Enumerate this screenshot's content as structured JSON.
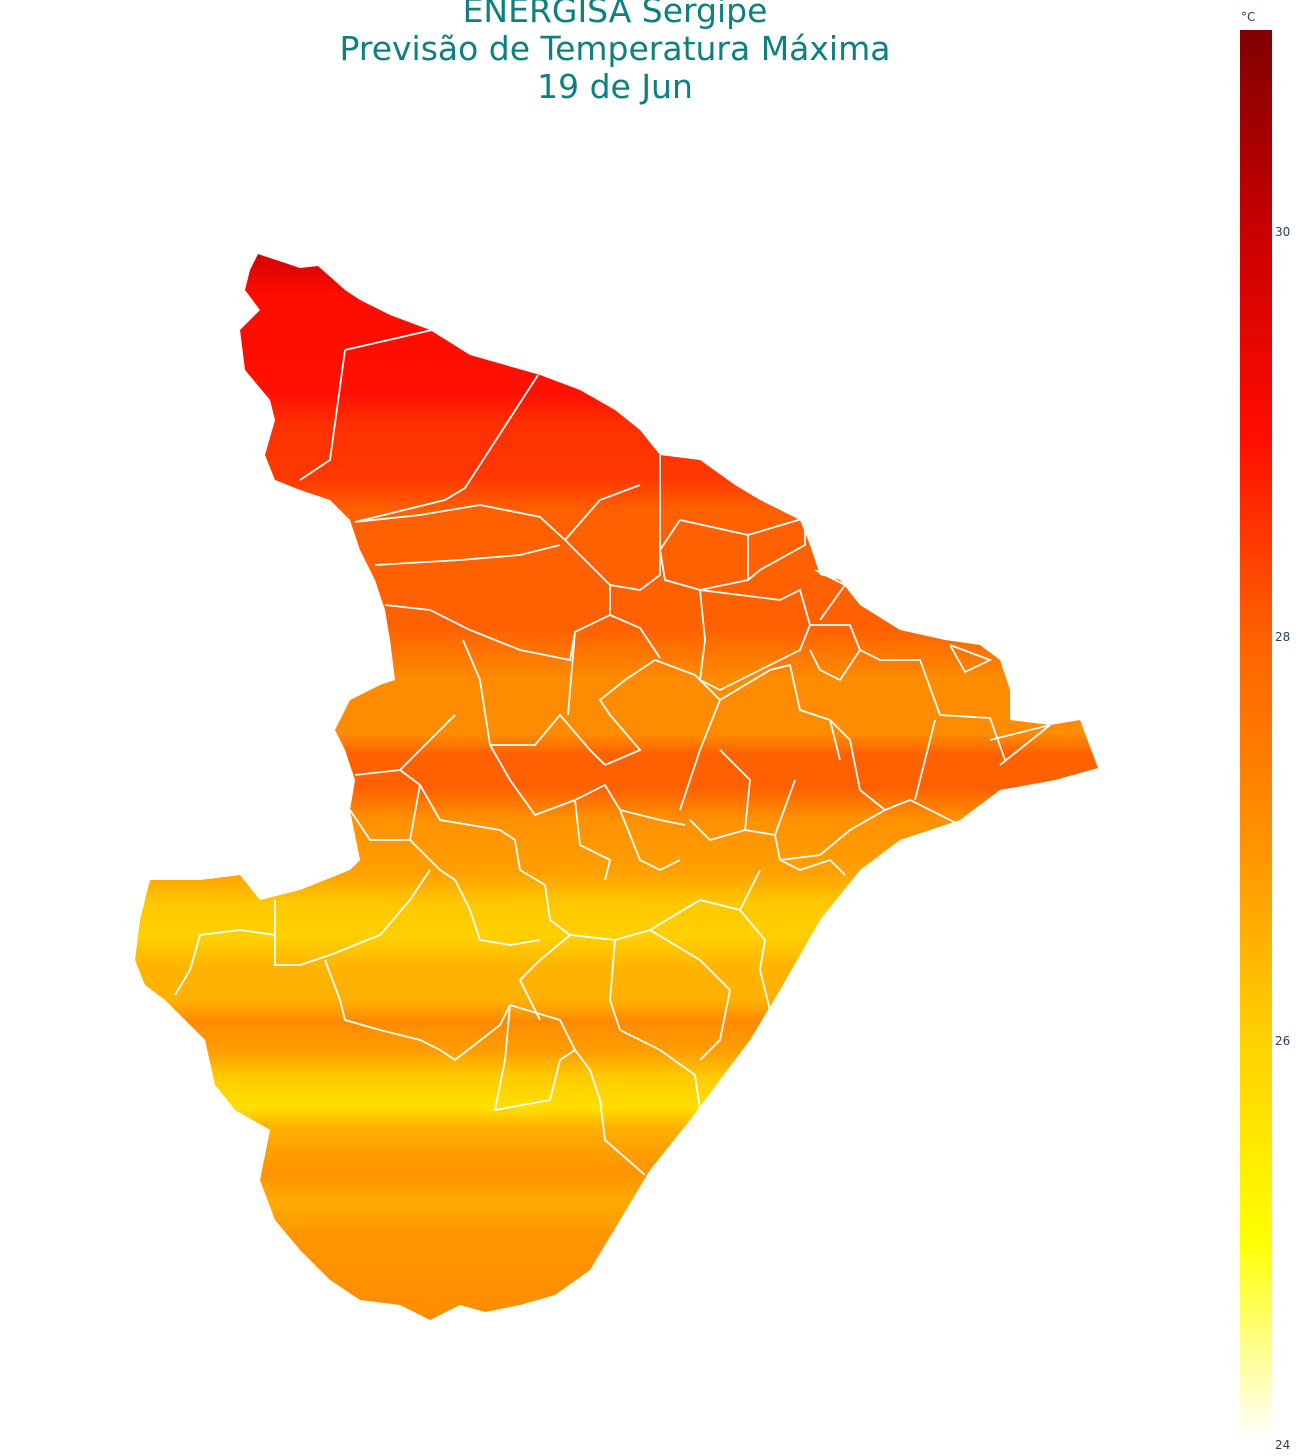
{
  "title": {
    "line1": "ENERGISA Sergipe",
    "line2": "Previsão de Temperatura Máxima",
    "line3": "19 de Jun"
  },
  "colorbar": {
    "unit": "°C",
    "ticks": [
      "30",
      "28",
      "26",
      "24"
    ],
    "range": [
      24,
      31
    ],
    "colors": [
      "#ffffff",
      "#ffff00",
      "#ffd000",
      "#ff9000",
      "#ff6000",
      "#ff0c00",
      "#c80000",
      "#800000"
    ]
  },
  "map": {
    "region": "Sergipe",
    "fill_colors": [
      "#d40000",
      "#ff0c00",
      "#ff3000",
      "#ff6000",
      "#ff8c00",
      "#ffae00",
      "#ffcc00",
      "#ffe000"
    ],
    "border_color": "#ffffff"
  }
}
